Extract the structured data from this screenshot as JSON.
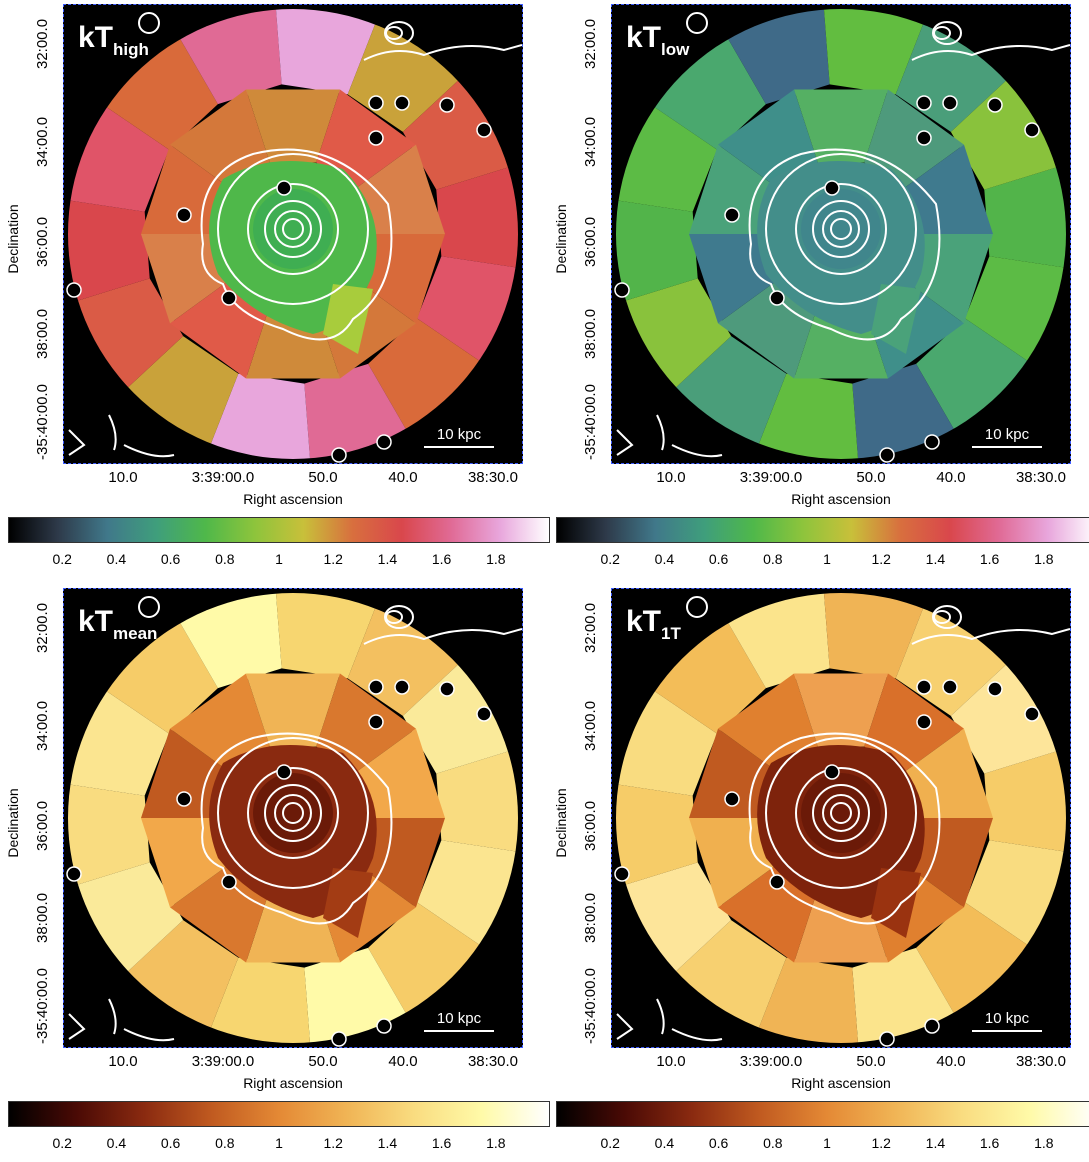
{
  "panels": [
    {
      "id": "high",
      "title_main": "kT",
      "title_sub": "high",
      "cmap": "cubehelix",
      "scale_label": "10 kpc"
    },
    {
      "id": "low",
      "title_main": "kT",
      "title_sub": "low",
      "cmap": "cubehelix",
      "scale_label": "10 kpc"
    },
    {
      "id": "mean",
      "title_main": "kT",
      "title_sub": "mean",
      "cmap": "heat",
      "scale_label": "10 kpc"
    },
    {
      "id": "1t",
      "title_main": "kT",
      "title_sub": "1T",
      "cmap": "heat",
      "scale_label": "10 kpc"
    }
  ],
  "axes": {
    "xlabel": "Right ascension",
    "ylabel": "Declination",
    "x_ticks": [
      "10.0",
      "3:39:00.0",
      "50.0",
      "40.0",
      "38:30.0"
    ],
    "y_ticks": [
      "32:00.0",
      "34:00.0",
      "36:00.0",
      "38:00.0",
      "-35:40:00.0"
    ]
  },
  "colorbar": {
    "ticks": [
      "0.2",
      "0.4",
      "0.6",
      "0.8",
      "1",
      "1.2",
      "1.4",
      "1.6",
      "1.8"
    ],
    "range": [
      0.0,
      2.0
    ]
  },
  "colors": {
    "cubehelix": [
      "#000000",
      "#2e3a4a",
      "#40788a",
      "#3f9e7c",
      "#4fb84a",
      "#8dc43c",
      "#c8c03a",
      "#d86f3e",
      "#d9474c",
      "#e06a95",
      "#e8a6dc",
      "#ffffff"
    ],
    "heat": [
      "#000000",
      "#4a0a05",
      "#8a2a10",
      "#c05a20",
      "#e48935",
      "#f0b455",
      "#f9dc80",
      "#fffaa8",
      "#ffffff"
    ]
  }
}
